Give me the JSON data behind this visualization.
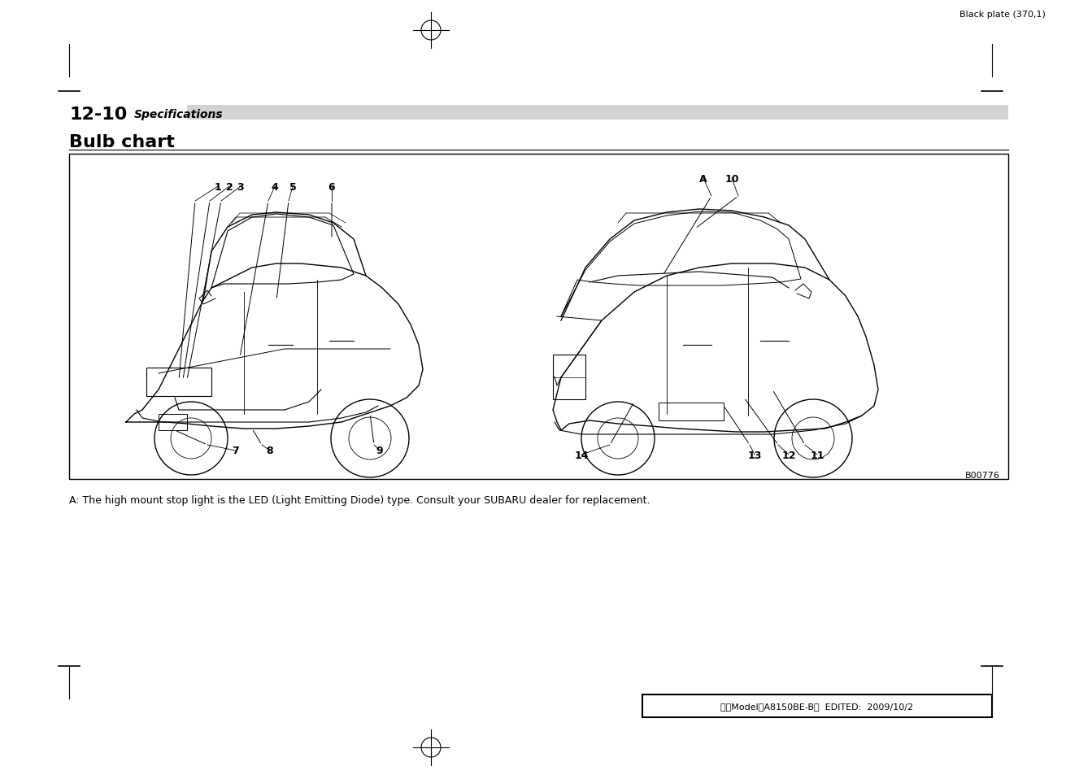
{
  "page_header_text": "Black plate (370,1)",
  "section_number": "12-10",
  "section_title": "Specifications",
  "chart_title": "Bulb chart",
  "footnote": "A: The high mount stop light is the LED (Light Emitting Diode) type. Consult your SUBARU dealer for replacement.",
  "footer_box_text": "北米Model「A8150BE-B」  EDITED:  2009/10/2",
  "image_code": "B00776",
  "front_labels": [
    "1",
    "2",
    "3",
    "4",
    "5",
    "6",
    "7",
    "8",
    "9"
  ],
  "rear_labels": [
    "A",
    "10",
    "11",
    "12",
    "13",
    "14"
  ],
  "bg_color": "#ffffff",
  "box_color": "#000000",
  "section_bar_color": "#d3d3d3",
  "header_color": "#000000",
  "footer_box_bg": "#ffffff"
}
